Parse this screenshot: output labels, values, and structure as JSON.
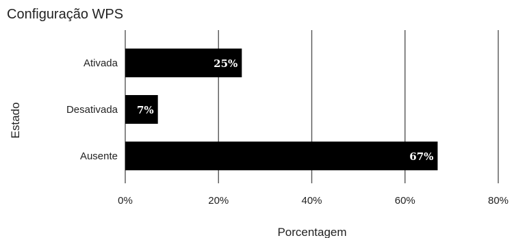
{
  "chart_data": {
    "type": "bar",
    "orientation": "horizontal",
    "title": "Configuração WPS",
    "xlabel": "Porcentagem",
    "ylabel": "Estado",
    "categories": [
      "Ativada",
      "Desativada",
      "Ausente"
    ],
    "values": [
      25,
      7,
      67
    ],
    "value_labels": [
      "25%",
      "7%",
      "67%"
    ],
    "xlim": [
      0,
      80
    ],
    "xticks": [
      0,
      20,
      40,
      60,
      80
    ],
    "xtick_labels": [
      "0%",
      "20%",
      "40%",
      "60%",
      "80%"
    ],
    "grid": "vertical",
    "legend": "none",
    "bar_color": "#000000",
    "label_color": "#ffffff"
  }
}
